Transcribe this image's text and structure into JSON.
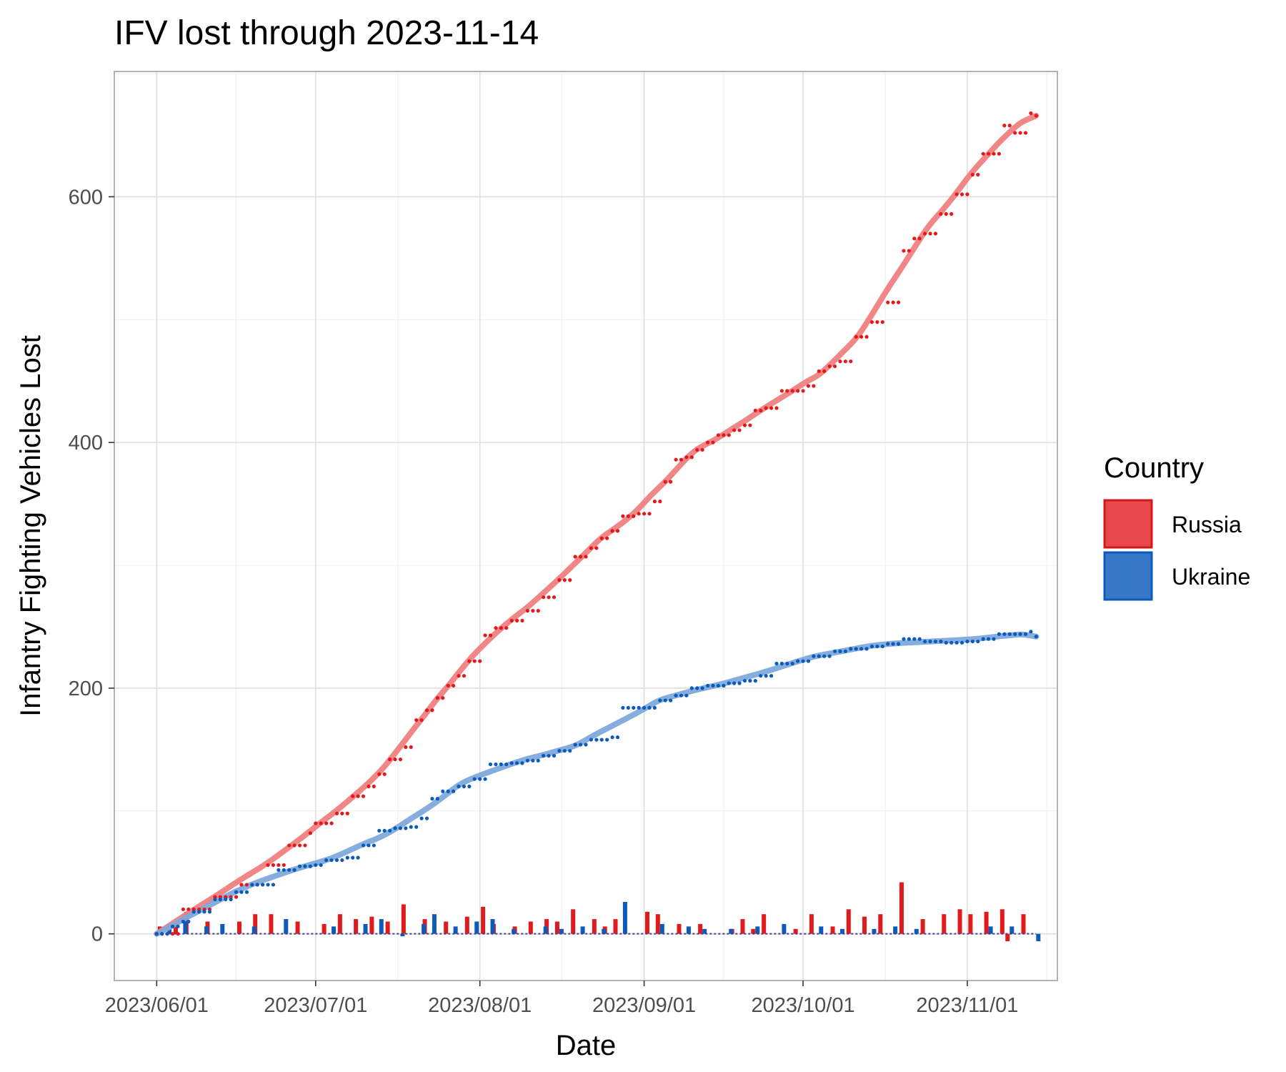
{
  "chart_data": {
    "type": "line",
    "title": "IFV lost through 2023-11-14",
    "xlabel": "Date",
    "ylabel": "Infantry Fighting Vehicles Lost",
    "x_range": [
      "2023-05-24",
      "2023-11-18"
    ],
    "ylim": [
      -38,
      702
    ],
    "x_ticks": [
      {
        "date": "2023-06-01",
        "label": "2023/06/01"
      },
      {
        "date": "2023-07-01",
        "label": "2023/07/01"
      },
      {
        "date": "2023-08-01",
        "label": "2023/08/01"
      },
      {
        "date": "2023-09-01",
        "label": "2023/09/01"
      },
      {
        "date": "2023-10-01",
        "label": "2023/10/01"
      },
      {
        "date": "2023-11-01",
        "label": "2023/11/01"
      }
    ],
    "y_ticks": [
      0,
      200,
      400,
      600
    ],
    "grid": true,
    "legend": {
      "title": "Country",
      "position": "right"
    },
    "cumulative_series": [
      {
        "name": "Russia",
        "color": "#e31a1c",
        "smooth_color": "#f08080",
        "points": [
          [
            "2023-06-01",
            0
          ],
          [
            "2023-06-06",
            20
          ],
          [
            "2023-06-12",
            30
          ],
          [
            "2023-06-17",
            40
          ],
          [
            "2023-06-22",
            56
          ],
          [
            "2023-06-26",
            72
          ],
          [
            "2023-06-30",
            82
          ],
          [
            "2023-07-01",
            90
          ],
          [
            "2023-07-05",
            98
          ],
          [
            "2023-07-08",
            112
          ],
          [
            "2023-07-11",
            120
          ],
          [
            "2023-07-13",
            130
          ],
          [
            "2023-07-15",
            142
          ],
          [
            "2023-07-18",
            152
          ],
          [
            "2023-07-20",
            174
          ],
          [
            "2023-07-22",
            182
          ],
          [
            "2023-07-24",
            192
          ],
          [
            "2023-07-26",
            202
          ],
          [
            "2023-07-28",
            210
          ],
          [
            "2023-07-30",
            222
          ],
          [
            "2023-08-02",
            243
          ],
          [
            "2023-08-04",
            249
          ],
          [
            "2023-08-07",
            255
          ],
          [
            "2023-08-10",
            263
          ],
          [
            "2023-08-13",
            274
          ],
          [
            "2023-08-16",
            288
          ],
          [
            "2023-08-19",
            307
          ],
          [
            "2023-08-22",
            314
          ],
          [
            "2023-08-24",
            322
          ],
          [
            "2023-08-26",
            328
          ],
          [
            "2023-08-28",
            340
          ],
          [
            "2023-08-31",
            342
          ],
          [
            "2023-09-03",
            352
          ],
          [
            "2023-09-05",
            368
          ],
          [
            "2023-09-07",
            386
          ],
          [
            "2023-09-09",
            388
          ],
          [
            "2023-09-11",
            394
          ],
          [
            "2023-09-13",
            400
          ],
          [
            "2023-09-15",
            406
          ],
          [
            "2023-09-18",
            410
          ],
          [
            "2023-09-20",
            414
          ],
          [
            "2023-09-22",
            426
          ],
          [
            "2023-09-24",
            428
          ],
          [
            "2023-09-27",
            442
          ],
          [
            "2023-09-30",
            442
          ],
          [
            "2023-10-02",
            446
          ],
          [
            "2023-10-04",
            458
          ],
          [
            "2023-10-06",
            462
          ],
          [
            "2023-10-08",
            466
          ],
          [
            "2023-10-11",
            486
          ],
          [
            "2023-10-14",
            498
          ],
          [
            "2023-10-17",
            514
          ],
          [
            "2023-10-20",
            556
          ],
          [
            "2023-10-22",
            566
          ],
          [
            "2023-10-24",
            570
          ],
          [
            "2023-10-27",
            586
          ],
          [
            "2023-10-30",
            602
          ],
          [
            "2023-11-02",
            618
          ],
          [
            "2023-11-04",
            635
          ],
          [
            "2023-11-08",
            658
          ],
          [
            "2023-11-10",
            652
          ],
          [
            "2023-11-13",
            668
          ],
          [
            "2023-11-14",
            666
          ]
        ]
      },
      {
        "name": "Ukraine",
        "color": "#0c5bb8",
        "smooth_color": "#7ea9dc",
        "points": [
          [
            "2023-06-01",
            0
          ],
          [
            "2023-06-04",
            6
          ],
          [
            "2023-06-06",
            10
          ],
          [
            "2023-06-08",
            18
          ],
          [
            "2023-06-12",
            28
          ],
          [
            "2023-06-16",
            34
          ],
          [
            "2023-06-19",
            40
          ],
          [
            "2023-06-24",
            52
          ],
          [
            "2023-06-28",
            55
          ],
          [
            "2023-07-01",
            56
          ],
          [
            "2023-07-03",
            60
          ],
          [
            "2023-07-07",
            62
          ],
          [
            "2023-07-10",
            72
          ],
          [
            "2023-07-13",
            84
          ],
          [
            "2023-07-16",
            86
          ],
          [
            "2023-07-19",
            87
          ],
          [
            "2023-07-21",
            94
          ],
          [
            "2023-07-23",
            110
          ],
          [
            "2023-07-25",
            116
          ],
          [
            "2023-07-28",
            120
          ],
          [
            "2023-07-31",
            126
          ],
          [
            "2023-08-03",
            138
          ],
          [
            "2023-08-07",
            139
          ],
          [
            "2023-08-10",
            141
          ],
          [
            "2023-08-13",
            145
          ],
          [
            "2023-08-16",
            149
          ],
          [
            "2023-08-19",
            154
          ],
          [
            "2023-08-22",
            158
          ],
          [
            "2023-08-26",
            160
          ],
          [
            "2023-08-28",
            184
          ],
          [
            "2023-09-01",
            184
          ],
          [
            "2023-09-04",
            190
          ],
          [
            "2023-09-07",
            194
          ],
          [
            "2023-09-10",
            200
          ],
          [
            "2023-09-13",
            202
          ],
          [
            "2023-09-17",
            204
          ],
          [
            "2023-09-20",
            206
          ],
          [
            "2023-09-23",
            210
          ],
          [
            "2023-09-26",
            220
          ],
          [
            "2023-09-30",
            222
          ],
          [
            "2023-10-03",
            226
          ],
          [
            "2023-10-07",
            230
          ],
          [
            "2023-10-10",
            232
          ],
          [
            "2023-10-14",
            234
          ],
          [
            "2023-10-17",
            236
          ],
          [
            "2023-10-20",
            240
          ],
          [
            "2023-10-24",
            238
          ],
          [
            "2023-10-28",
            237
          ],
          [
            "2023-11-01",
            238
          ],
          [
            "2023-11-04",
            240
          ],
          [
            "2023-11-07",
            244
          ],
          [
            "2023-11-11",
            244
          ],
          [
            "2023-11-13",
            246
          ],
          [
            "2023-11-14",
            242
          ]
        ]
      }
    ],
    "daily_series": [
      {
        "name": "Russia",
        "color": "#e31a1c",
        "bars": [
          [
            "2023-06-02",
            6
          ],
          [
            "2023-06-05",
            8
          ],
          [
            "2023-06-07",
            18
          ],
          [
            "2023-06-11",
            10
          ],
          [
            "2023-06-17",
            10
          ],
          [
            "2023-06-20",
            16
          ],
          [
            "2023-06-23",
            16
          ],
          [
            "2023-06-28",
            10
          ],
          [
            "2023-07-03",
            8
          ],
          [
            "2023-07-06",
            16
          ],
          [
            "2023-07-09",
            12
          ],
          [
            "2023-07-12",
            14
          ],
          [
            "2023-07-15",
            10
          ],
          [
            "2023-07-18",
            24
          ],
          [
            "2023-07-22",
            12
          ],
          [
            "2023-07-26",
            10
          ],
          [
            "2023-07-30",
            14
          ],
          [
            "2023-08-02",
            22
          ],
          [
            "2023-08-04",
            8
          ],
          [
            "2023-08-08",
            6
          ],
          [
            "2023-08-11",
            10
          ],
          [
            "2023-08-14",
            12
          ],
          [
            "2023-08-16",
            10
          ],
          [
            "2023-08-19",
            20
          ],
          [
            "2023-08-23",
            12
          ],
          [
            "2023-08-25",
            6
          ],
          [
            "2023-08-27",
            12
          ],
          [
            "2023-09-02",
            18
          ],
          [
            "2023-09-04",
            16
          ],
          [
            "2023-09-08",
            8
          ],
          [
            "2023-09-12",
            8
          ],
          [
            "2023-09-18",
            4
          ],
          [
            "2023-09-20",
            12
          ],
          [
            "2023-09-22",
            4
          ],
          [
            "2023-09-24",
            16
          ],
          [
            "2023-09-30",
            4
          ],
          [
            "2023-10-03",
            16
          ],
          [
            "2023-10-07",
            6
          ],
          [
            "2023-10-10",
            20
          ],
          [
            "2023-10-13",
            14
          ],
          [
            "2023-10-16",
            16
          ],
          [
            "2023-10-20",
            42
          ],
          [
            "2023-10-24",
            12
          ],
          [
            "2023-10-28",
            16
          ],
          [
            "2023-10-31",
            20
          ],
          [
            "2023-11-02",
            16
          ],
          [
            "2023-11-05",
            18
          ],
          [
            "2023-11-08",
            20
          ],
          [
            "2023-11-09",
            -6
          ],
          [
            "2023-11-12",
            16
          ]
        ]
      },
      {
        "name": "Ukraine",
        "color": "#0c5bb8",
        "bars": [
          [
            "2023-06-03",
            4
          ],
          [
            "2023-06-06",
            10
          ],
          [
            "2023-06-10",
            6
          ],
          [
            "2023-06-13",
            8
          ],
          [
            "2023-06-19",
            6
          ],
          [
            "2023-06-25",
            12
          ],
          [
            "2023-07-04",
            6
          ],
          [
            "2023-07-10",
            8
          ],
          [
            "2023-07-13",
            12
          ],
          [
            "2023-07-17",
            -2
          ],
          [
            "2023-07-21",
            8
          ],
          [
            "2023-07-23",
            16
          ],
          [
            "2023-07-27",
            6
          ],
          [
            "2023-07-31",
            10
          ],
          [
            "2023-08-03",
            12
          ],
          [
            "2023-08-07",
            4
          ],
          [
            "2023-08-13",
            6
          ],
          [
            "2023-08-16",
            4
          ],
          [
            "2023-08-20",
            6
          ],
          [
            "2023-08-24",
            4
          ],
          [
            "2023-08-28",
            26
          ],
          [
            "2023-09-04",
            8
          ],
          [
            "2023-09-09",
            6
          ],
          [
            "2023-09-12",
            4
          ],
          [
            "2023-09-17",
            4
          ],
          [
            "2023-09-22",
            6
          ],
          [
            "2023-09-27",
            8
          ],
          [
            "2023-10-04",
            6
          ],
          [
            "2023-10-08",
            4
          ],
          [
            "2023-10-14",
            4
          ],
          [
            "2023-10-18",
            6
          ],
          [
            "2023-10-22",
            4
          ],
          [
            "2023-11-05",
            6
          ],
          [
            "2023-11-09",
            6
          ],
          [
            "2023-11-14",
            -6
          ]
        ]
      }
    ]
  }
}
